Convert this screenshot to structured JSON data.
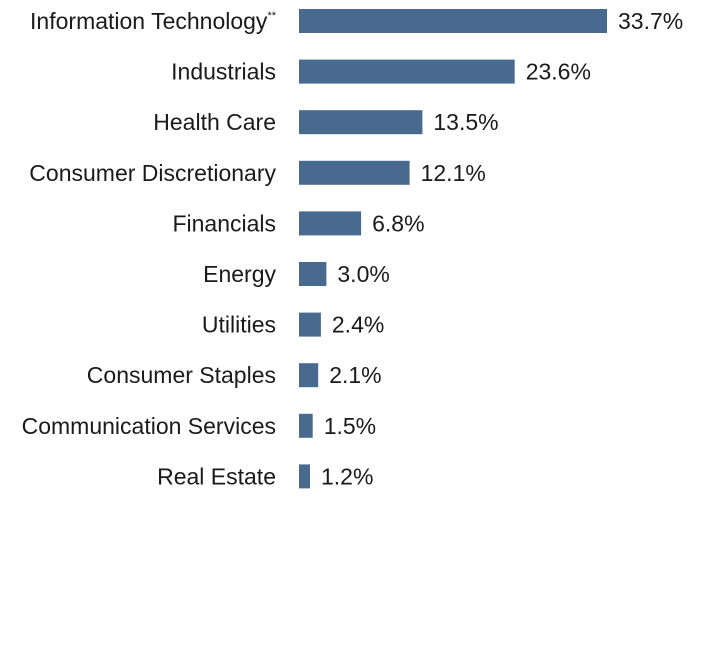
{
  "chart_data": {
    "type": "bar",
    "orientation": "horizontal",
    "title": "",
    "xlabel": "",
    "ylabel": "",
    "grid": false,
    "bar_color": "#486a8f",
    "value_suffix": "%",
    "xlim": [
      0,
      33.7
    ],
    "categories": [
      "Information Technology",
      "Industrials",
      "Health Care",
      "Consumer Discretionary",
      "Financials",
      "Energy",
      "Utilities",
      "Consumer Staples",
      "Communication Services",
      "Real Estate"
    ],
    "category_notes": [
      "**",
      "",
      "",
      "",
      "",
      "",
      "",
      "",
      "",
      ""
    ],
    "values": [
      33.7,
      23.6,
      13.5,
      12.1,
      6.8,
      3.0,
      2.4,
      2.1,
      1.5,
      1.2
    ],
    "value_labels": [
      "33.7%",
      "23.6%",
      "13.5%",
      "12.1%",
      "6.8%",
      "3.0%",
      "2.4%",
      "2.1%",
      "1.5%",
      "1.2%"
    ]
  }
}
